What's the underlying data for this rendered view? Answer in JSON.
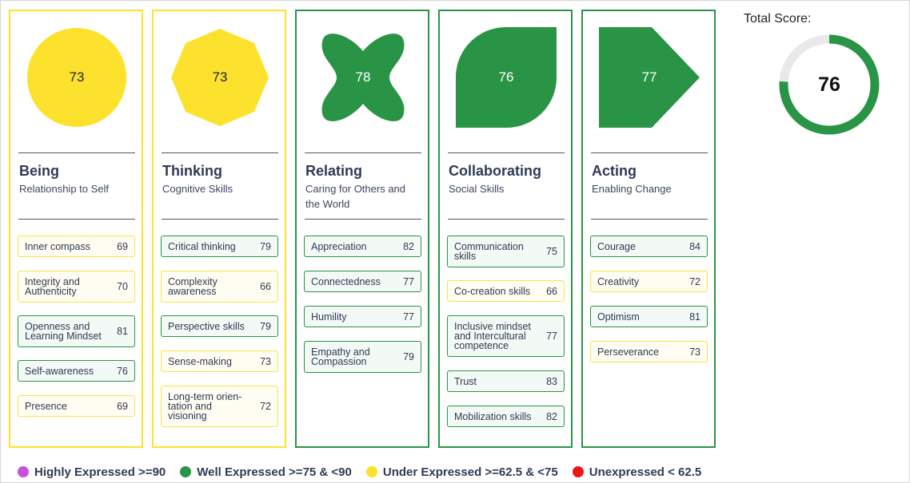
{
  "colors": {
    "well": "#2a9446",
    "under": "#fce22c",
    "highly": "#c84fe0",
    "unexpressed": "#e81818",
    "track": "#e9e9e9"
  },
  "total": {
    "label": "Total Score:",
    "value": "76",
    "fraction": 0.76
  },
  "columns": [
    {
      "title": "Being",
      "subtitle": "Relationship to Self",
      "score": "73",
      "status": "under",
      "shape": "circle-icon",
      "skills": [
        {
          "name": "Inner compass",
          "value": "69",
          "status": "under"
        },
        {
          "name": "Integrity and Authenticity",
          "value": "70",
          "status": "under"
        },
        {
          "name": "Openness and Learning Mindset",
          "value": "81",
          "status": "well"
        },
        {
          "name": "Self-awareness",
          "value": "76",
          "status": "well"
        },
        {
          "name": "Presence",
          "value": "69",
          "status": "under"
        }
      ]
    },
    {
      "title": "Thinking",
      "subtitle": "Cognitive Skills",
      "score": "73",
      "status": "under",
      "shape": "octagon-icon",
      "skills": [
        {
          "name": "Critical thinking",
          "value": "79",
          "status": "well"
        },
        {
          "name": "Complexity awareness",
          "value": "66",
          "status": "under"
        },
        {
          "name": "Perspective skills",
          "value": "79",
          "status": "well"
        },
        {
          "name": "Sense-making",
          "value": "73",
          "status": "under"
        },
        {
          "name": "Long-term orien-tation and visioning",
          "value": "72",
          "status": "under"
        }
      ]
    },
    {
      "title": "Relating",
      "subtitle": "Caring for Others and the World",
      "score": "78",
      "status": "well",
      "shape": "clover-icon",
      "skills": [
        {
          "name": "Appreciation",
          "value": "82",
          "status": "well"
        },
        {
          "name": "Connectedness",
          "value": "77",
          "status": "well"
        },
        {
          "name": "Humility",
          "value": "77",
          "status": "well"
        },
        {
          "name": "Empathy and Compassion",
          "value": "79",
          "status": "well"
        }
      ]
    },
    {
      "title": "Collaborating",
      "subtitle": "Social Skills",
      "score": "76",
      "status": "well",
      "shape": "leaf-icon",
      "skills": [
        {
          "name": "Communication skills",
          "value": "75",
          "status": "well"
        },
        {
          "name": "Co-creation skills",
          "value": "66",
          "status": "under"
        },
        {
          "name": "Inclusive mindset and Intercultural competence",
          "value": "77",
          "status": "well"
        },
        {
          "name": "Trust",
          "value": "83",
          "status": "well"
        },
        {
          "name": "Mobilization skills",
          "value": "82",
          "status": "well"
        }
      ]
    },
    {
      "title": "Acting",
      "subtitle": "Enabling Change",
      "score": "77",
      "status": "well",
      "shape": "arrow-pentagon-icon",
      "skills": [
        {
          "name": "Courage",
          "value": "84",
          "status": "well"
        },
        {
          "name": "Creativity",
          "value": "72",
          "status": "under"
        },
        {
          "name": "Optimism",
          "value": "81",
          "status": "well"
        },
        {
          "name": "Perseverance",
          "value": "73",
          "status": "under"
        }
      ]
    }
  ],
  "legend": [
    {
      "label": "Highly Expressed >=90",
      "color": "#c84fe0"
    },
    {
      "label": "Well Expressed >=75 & <90",
      "color": "#2a9446"
    },
    {
      "label": "Under Expressed >=62.5 & <75",
      "color": "#fce22c"
    },
    {
      "label": "Unexpressed < 62.5",
      "color": "#e81818"
    }
  ]
}
